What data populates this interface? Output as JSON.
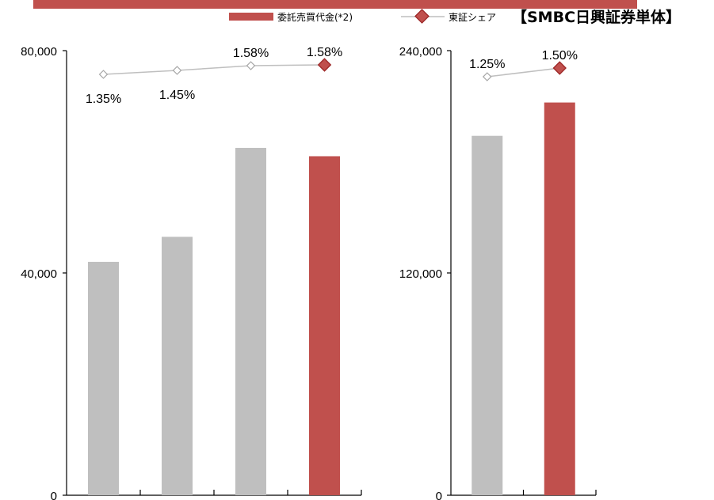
{
  "header": {
    "title": "【SMBC日興証券単体】"
  },
  "legend": {
    "bar_label": "委託売買代金(*2)",
    "line_label": "東証シェア"
  },
  "colors": {
    "top_bar": "#c0504d",
    "accent_bar": "#c0504d",
    "accent_edge": "#9c2525",
    "gray_bar": "#bfbfbf",
    "line": "#bfbfbf",
    "hollow_marker_edge": "#a6a6a6",
    "axis": "#000000"
  },
  "chart_data": [
    {
      "type": "bar",
      "categories": [
        "",
        "",
        "",
        ""
      ],
      "series": [
        {
          "values": [
            42000,
            46500,
            62500,
            61000
          ]
        }
      ],
      "highlight_index": 3,
      "ylim": [
        0,
        80000
      ],
      "yticks": [
        0,
        40000,
        80000
      ],
      "ytick_labels": [
        "0",
        "40,000",
        "80,000"
      ],
      "share": {
        "values": [
          1.35,
          1.45,
          1.58,
          1.58
        ],
        "labels": [
          "1.35%",
          "1.45%",
          "1.58%",
          "1.58%"
        ],
        "label_placement": [
          "below",
          "below",
          "above",
          "above"
        ]
      },
      "grid": false
    },
    {
      "type": "bar",
      "categories": [
        "",
        ""
      ],
      "series": [
        {
          "values": [
            194000,
            212000
          ]
        }
      ],
      "highlight_index": 1,
      "ylim": [
        0,
        240000
      ],
      "yticks": [
        0,
        120000,
        240000
      ],
      "ytick_labels": [
        "0",
        "120,000",
        "240,000"
      ],
      "share": {
        "values": [
          1.25,
          1.5
        ],
        "labels": [
          "1.25%",
          "1.50%"
        ],
        "label_placement": [
          "above",
          "above"
        ]
      },
      "grid": false
    }
  ]
}
